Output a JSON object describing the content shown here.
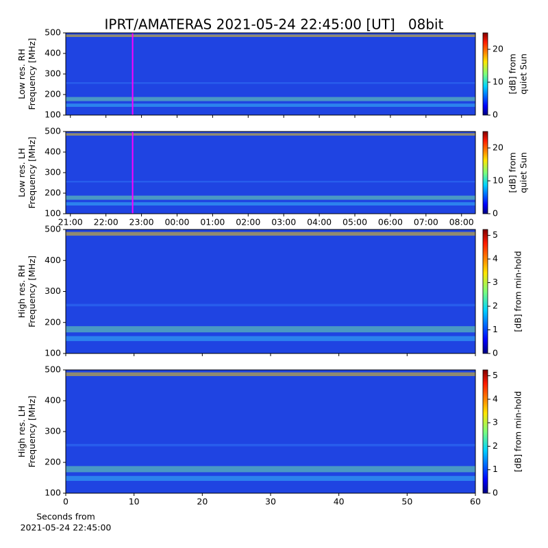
{
  "chart_data": [
    {
      "type": "heatmap",
      "title": "IPRT/AMATERAS 2021-05-24 22:45:00 [UT]   08bit",
      "ylabel": [
        "Low res. RH",
        "Frequency [MHz]"
      ],
      "ylim": [
        100,
        500
      ],
      "yticks": [
        100,
        200,
        300,
        400,
        500
      ],
      "xlim": [
        20.87,
        32.39
      ],
      "colormap": "jet",
      "markers": [
        {
          "x": 22.75,
          "color": "#ff00ff"
        }
      ],
      "colorbar": {
        "label": [
          "[dB] from",
          "quiet Sun"
        ],
        "lim": [
          0,
          25
        ],
        "ticks": [
          0,
          10,
          20
        ]
      }
    },
    {
      "type": "heatmap",
      "ylabel": [
        "Low res. LH",
        "Frequency [MHz]"
      ],
      "ylim": [
        100,
        500
      ],
      "yticks": [
        100,
        200,
        300,
        400,
        500
      ],
      "xlim": [
        20.87,
        32.39
      ],
      "colormap": "jet",
      "xticks": [
        {
          "value": 21,
          "label": "21:00"
        },
        {
          "value": 22,
          "label": "22:00"
        },
        {
          "value": 23,
          "label": "23:00"
        },
        {
          "value": 24,
          "label": "00:00"
        },
        {
          "value": 25,
          "label": "01:00"
        },
        {
          "value": 26,
          "label": "02:00"
        },
        {
          "value": 27,
          "label": "03:00"
        },
        {
          "value": 28,
          "label": "04:00"
        },
        {
          "value": 29,
          "label": "05:00"
        },
        {
          "value": 30,
          "label": "06:00"
        },
        {
          "value": 31,
          "label": "07:00"
        },
        {
          "value": 32,
          "label": "08:00"
        }
      ],
      "markers": [
        {
          "x": 22.75,
          "color": "#ff00ff"
        }
      ],
      "colorbar": {
        "label": [
          "[dB] from",
          "quiet Sun"
        ],
        "lim": [
          0,
          25
        ],
        "ticks": [
          0,
          10,
          20
        ]
      }
    },
    {
      "type": "heatmap",
      "ylabel": [
        "High res. RH",
        "Frequency [MHz]"
      ],
      "ylim": [
        100,
        500
      ],
      "yticks": [
        100,
        200,
        300,
        400,
        500
      ],
      "xlim": [
        0,
        60
      ],
      "colormap": "jet",
      "colorbar": {
        "label": [
          "[dB] from min-hold"
        ],
        "lim": [
          0,
          5.25
        ],
        "ticks": [
          0,
          1,
          2,
          3,
          4,
          5
        ]
      }
    },
    {
      "type": "heatmap",
      "ylabel": [
        "High res. LH",
        "Frequency [MHz]"
      ],
      "ylim": [
        100,
        500
      ],
      "yticks": [
        100,
        200,
        300,
        400,
        500
      ],
      "xlim": [
        0,
        60
      ],
      "xticks": [
        0,
        10,
        20,
        30,
        40,
        50,
        60
      ],
      "colormap": "jet",
      "xlabel": [
        "Seconds from",
        "2021-05-24 22:45:00"
      ],
      "colorbar": {
        "label": [
          "[dB] from min-hold"
        ],
        "lim": [
          0,
          5.25
        ],
        "ticks": [
          0,
          1,
          2,
          3,
          4,
          5
        ]
      }
    }
  ]
}
